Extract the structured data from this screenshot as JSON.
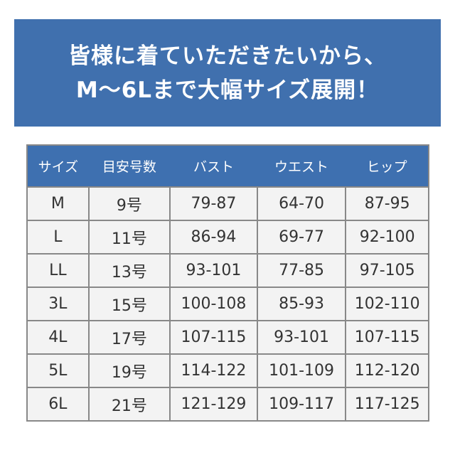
{
  "banner": {
    "line1": "皆様に着ていただきたいから、",
    "line2": "M～6Lまで大幅サイズ展開！"
  },
  "table": {
    "headers": [
      "サイズ",
      "目安号数",
      "バスト",
      "ウエスト",
      "ヒップ"
    ],
    "rows": [
      [
        "M",
        "9号",
        "79-87",
        "64-70",
        "87-95"
      ],
      [
        "L",
        "11号",
        "86-94",
        "69-77",
        "92-100"
      ],
      [
        "LL",
        "13号",
        "93-101",
        "77-85",
        "97-105"
      ],
      [
        "3L",
        "15号",
        "100-108",
        "85-93",
        "102-110"
      ],
      [
        "4L",
        "17号",
        "107-115",
        "93-101",
        "107-115"
      ],
      [
        "5L",
        "19号",
        "114-122",
        "101-109",
        "112-120"
      ],
      [
        "6L",
        "21号",
        "121-129",
        "109-117",
        "117-125"
      ]
    ]
  }
}
